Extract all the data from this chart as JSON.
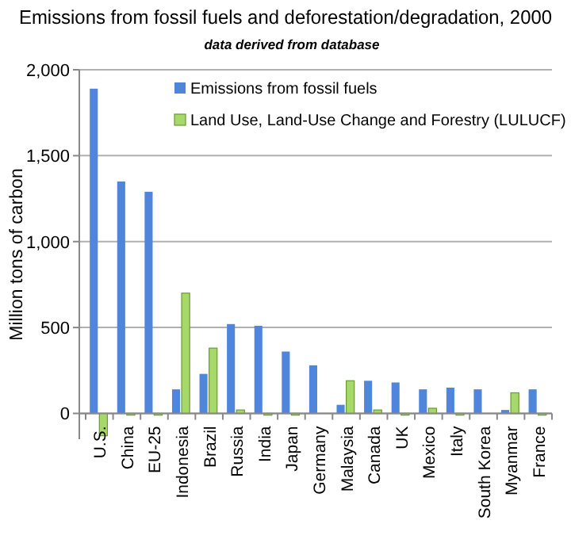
{
  "chart_data": {
    "type": "bar",
    "title": "Emissions from fossil fuels and deforestation/degradation, 2000",
    "subtitle": "data derived from database",
    "ylabel": "Million tons of carbon",
    "categories": [
      "U.S.",
      "China",
      "EU-25",
      "Indonesia",
      "Brazil",
      "Russia",
      "India",
      "Japan",
      "Germany",
      "Malaysia",
      "Canada",
      "UK",
      "Mexico",
      "Italy",
      "South Korea",
      "Myanmar",
      "France"
    ],
    "series": [
      {
        "name": "Emissions from fossil fuels",
        "color": "#4f86dc",
        "values": [
          1890,
          1350,
          1290,
          140,
          230,
          520,
          510,
          360,
          280,
          50,
          190,
          180,
          140,
          150,
          140,
          20,
          140
        ]
      },
      {
        "name": "Land Use, Land-Use Change and Forestry (LULUCF)",
        "color": "#a6d96a",
        "values": [
          -130,
          -10,
          -10,
          700,
          380,
          20,
          -10,
          -10,
          0,
          190,
          20,
          -10,
          30,
          -10,
          0,
          120,
          -10
        ]
      }
    ],
    "ylim": [
      -150,
      2000
    ],
    "yticks": [
      {
        "value": 0,
        "label": "0"
      },
      {
        "value": 500,
        "label": "500"
      },
      {
        "value": 1000,
        "label": "1,000"
      },
      {
        "value": 1500,
        "label": "1,500"
      },
      {
        "value": 2000,
        "label": "2,000"
      }
    ],
    "grid": "y",
    "legend": "top right"
  }
}
